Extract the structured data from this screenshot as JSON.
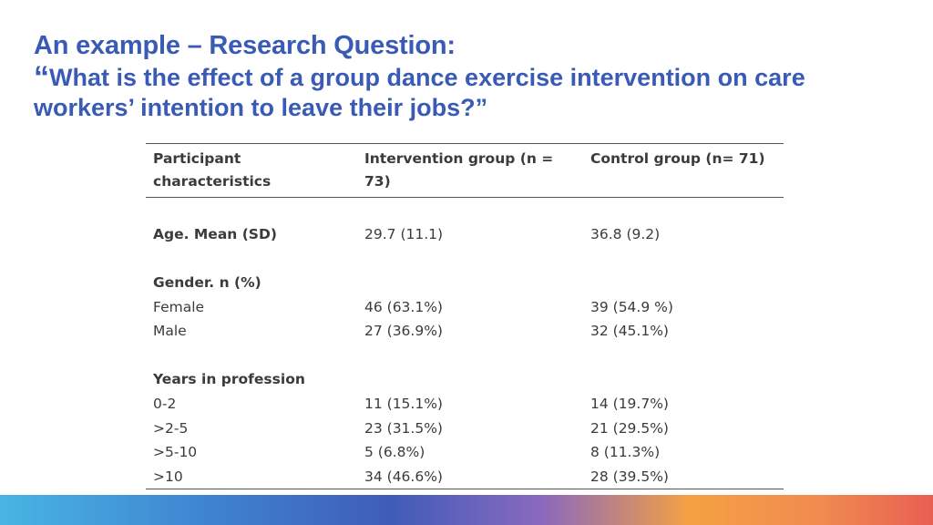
{
  "slide": {
    "title": "An example – Research Question:",
    "question_open_mark": "“",
    "question_text": "What is the effect of a group dance exercise intervention on care workers’ intention to leave their jobs?",
    "question_close_mark": "”"
  },
  "table": {
    "headers": [
      "Participant characteristics",
      "Intervention group (n = 73)",
      "Control group (n= 71)"
    ],
    "age_label": "Age. Mean (SD)",
    "age_intervention": "29.7 (11.1)",
    "age_control": "36.8 (9.2)",
    "gender_label": "Gender. n (%)",
    "gender_rows": [
      {
        "label": "Female",
        "intervention": "46 (63.1%)",
        "control": "39 (54.9 %)"
      },
      {
        "label": "Male",
        "intervention": "27 (36.9%)",
        "control": "32 (45.1%)"
      }
    ],
    "years_label": "Years in profession",
    "years_rows": [
      {
        "label": "0-2",
        "intervention": "11 (15.1%)",
        "control": "14 (19.7%)"
      },
      {
        "label": ">2-5",
        "intervention": "23 (31.5%)",
        "control": "21 (29.5%)"
      },
      {
        "label": ">5-10",
        "intervention": "5 (6.8%)",
        "control": "8 (11.3%)"
      },
      {
        "label": ">10",
        "intervention": "34 (46.6%)",
        "control": "28 (39.5%)"
      }
    ]
  },
  "colors": {
    "title": "#3a5bb5",
    "text": "#3b3b3b"
  }
}
